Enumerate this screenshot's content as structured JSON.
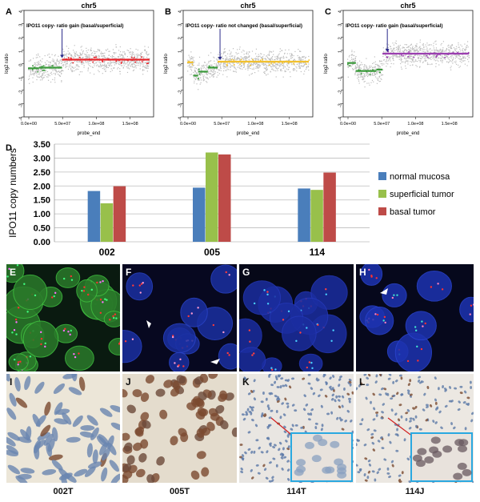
{
  "top_panels": [
    {
      "letter": "A",
      "title": "chr5",
      "annotation": "IPO11 copy- ratio gain (basal/superficial)",
      "ylabel": "log2 ratio",
      "xlabel": "probe_end",
      "yticks": [
        "4",
        "3",
        "2",
        "1",
        "0",
        "-1",
        "-2",
        "-3",
        "-4"
      ],
      "xticks": [
        "0.0e+00",
        "5.0e+07",
        "1.0e+08",
        "1.5e+08"
      ],
      "segment_colors": {
        "low": "#3a9a3a",
        "high": "#e8242a"
      }
    },
    {
      "letter": "B",
      "title": "chr5",
      "annotation": "IPO11 copy- ratio not changed (basal/superficial)",
      "ylabel": "log2 ratio",
      "xlabel": "probe_end",
      "yticks": [
        "4",
        "3",
        "2",
        "1",
        "0",
        "-1",
        "-2",
        "-3",
        "-4"
      ],
      "xticks": [
        "0.0e+00",
        "5.0e+07",
        "1.0e+08",
        "1.5e+08"
      ],
      "segment_colors": {
        "low": "#3a9a3a",
        "high": "#f2c12e"
      }
    },
    {
      "letter": "C",
      "title": "chr5",
      "annotation": "IPO11 copy- ratio gain (basal/superficial)",
      "ylabel": "log2 ratio",
      "xlabel": "probe_end",
      "yticks": [
        "4",
        "3",
        "2",
        "1",
        "0",
        "-1",
        "-2",
        "-3",
        "-4"
      ],
      "xticks": [
        "0.0e+00",
        "5.0e+07",
        "1.0e+08",
        "1.5e+08"
      ],
      "segment_colors": {
        "low": "#3a9a3a",
        "high": "#9b3fb0"
      }
    }
  ],
  "chart_data": {
    "type": "bar",
    "panel_letter": "D",
    "categories": [
      "002",
      "005",
      "114"
    ],
    "ylabel": "IPO11 copy numbers",
    "ylim": [
      0,
      3.5
    ],
    "yticks": [
      "0.00",
      "0.50",
      "1.00",
      "1.50",
      "2.00",
      "2.50",
      "3.00",
      "3.50"
    ],
    "grid": true,
    "legend_placement": "right",
    "series": [
      {
        "name": "normal mucosa",
        "color": "#4a7ebb",
        "values": [
          1.82,
          1.94,
          1.91
        ]
      },
      {
        "name": "superficial tumor",
        "color": "#98c04b",
        "values": [
          1.38,
          3.2,
          1.86
        ]
      },
      {
        "name": "basal tumor",
        "color": "#be4b48",
        "values": [
          1.99,
          3.13,
          2.48
        ]
      }
    ]
  },
  "image_panels": {
    "fish": [
      {
        "letter": "E"
      },
      {
        "letter": "F"
      },
      {
        "letter": "G"
      },
      {
        "letter": "H"
      }
    ],
    "ihc": [
      {
        "letter": "I",
        "caption": "002T"
      },
      {
        "letter": "J",
        "caption": "005T"
      },
      {
        "letter": "K",
        "caption": "114T"
      },
      {
        "letter": "L",
        "caption": "114J"
      }
    ]
  }
}
